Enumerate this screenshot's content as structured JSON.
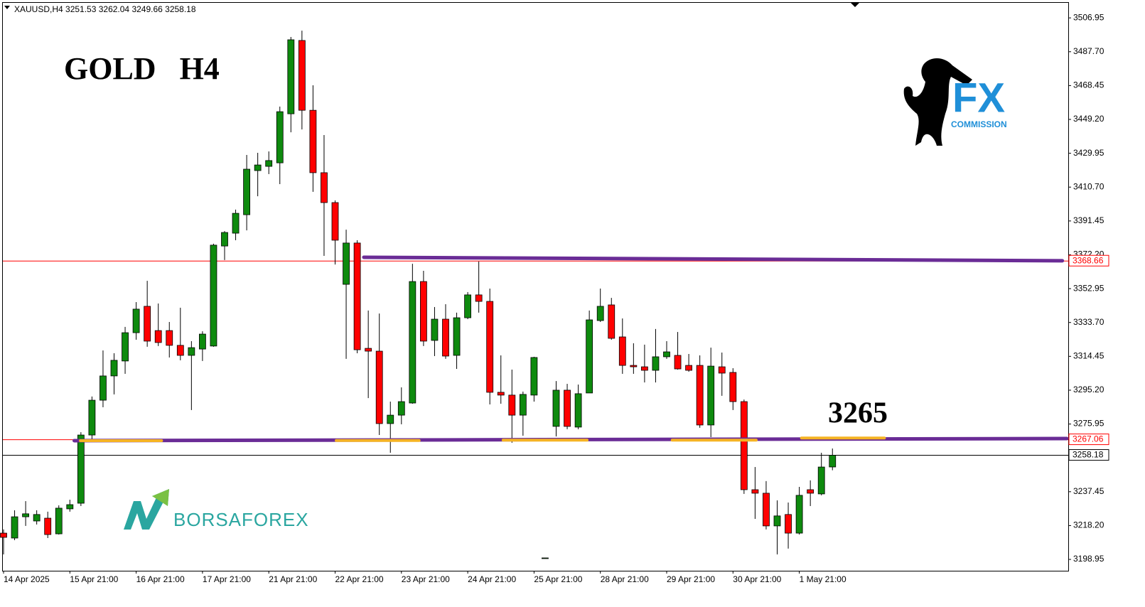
{
  "chart_data": {
    "type": "candlestick",
    "header": "XAUUSD,H4  3251.53 3262.04 3249.66 3258.18",
    "categories": [
      "14 Apr 2025",
      null,
      null,
      null,
      null,
      null,
      "15 Apr 21:00",
      null,
      null,
      null,
      null,
      null,
      "16 Apr 21:00",
      null,
      null,
      null,
      null,
      null,
      "17 Apr 21:00",
      null,
      null,
      null,
      null,
      null,
      "21 Apr 21:00",
      null,
      null,
      null,
      null,
      null,
      "22 Apr 21:00",
      null,
      null,
      null,
      null,
      null,
      "23 Apr 21:00",
      null,
      null,
      null,
      null,
      null,
      "24 Apr 21:00",
      null,
      null,
      null,
      null,
      null,
      "25 Apr 21:00",
      null,
      null,
      null,
      null,
      null,
      "28 Apr 21:00",
      null,
      null,
      null,
      null,
      null,
      "29 Apr 21:00",
      null,
      null,
      null,
      null,
      null,
      "30 Apr 21:00",
      null,
      null,
      null,
      null,
      null,
      "1 May 21:00",
      null,
      null,
      null
    ],
    "open": [
      3213.9,
      3211.1,
      3223.2,
      3220.8,
      3222.4,
      3213.5,
      3227.7,
      3230.9,
      3269.7,
      3289.5,
      3303.3,
      3311.8,
      3327.9,
      3342.9,
      3329.1,
      3329.1,
      3320.7,
      3315.0,
      3318.6,
      3320.3,
      3377.2,
      3384.5,
      3395.0,
      3420.1,
      3422.5,
      3424.5,
      3452.4,
      3494.1,
      3454.4,
      3418.9,
      3401.9,
      3355.4,
      3378.9,
      3319.0,
      3317.4,
      3276.2,
      3281.0,
      3287.9,
      3357.0,
      3323.5,
      3335.6,
      3315.0,
      3336.4,
      3349.4,
      3345.7,
      3294.0,
      3292.4,
      3281.0,
      3292.4,
      3199.8,
      3274.6,
      3295.2,
      3274.2,
      3293.6,
      3334.8,
      3343.7,
      3325.5,
      3309.3,
      3308.5,
      3306.5,
      3314.2,
      3315.0,
      3309.3,
      3309.3,
      3275.4,
      3308.5,
      3305.3,
      3288.7,
      3238.6,
      3236.6,
      3218.0,
      3224.5,
      3213.9,
      3238.6,
      3236.2,
      3251.53
    ],
    "high": [
      3216.0,
      3226.9,
      3232.1,
      3226.9,
      3226.1,
      3229.7,
      3232.9,
      3271.3,
      3291.6,
      3317.8,
      3316.2,
      3331.2,
      3345.3,
      3357.4,
      3344.5,
      3334.0,
      3342.1,
      3323.1,
      3328.7,
      3378.5,
      3385.7,
      3397.9,
      3429.0,
      3430.2,
      3431.0,
      3456.5,
      3496.1,
      3499.7,
      3468.6,
      3440.3,
      3403.1,
      3386.5,
      3380.5,
      3340.5,
      3338.8,
      3288.7,
      3296.8,
      3367.1,
      3363.1,
      3342.5,
      3344.1,
      3339.3,
      3351.0,
      3368.4,
      3353.0,
      3315.0,
      3306.9,
      3294.4,
      3314.2,
      3199.8,
      3300.4,
      3298.8,
      3298.4,
      3340.5,
      3353.0,
      3347.7,
      3336.0,
      3321.9,
      3321.1,
      3330.0,
      3323.1,
      3328.3,
      3315.8,
      3315.0,
      3319.4,
      3316.6,
      3307.7,
      3289.9,
      3251.5,
      3243.5,
      3232.5,
      3231.3,
      3240.2,
      3243.9,
      3259.6,
      3262.04
    ],
    "low": [
      3201.8,
      3209.9,
      3218.0,
      3218.8,
      3211.1,
      3213.1,
      3226.1,
      3229.3,
      3266.5,
      3285.5,
      3292.8,
      3304.5,
      3323.9,
      3319.9,
      3320.3,
      3313.8,
      3312.2,
      3283.9,
      3311.8,
      3319.9,
      3369.2,
      3380.5,
      3386.1,
      3405.5,
      3418.1,
      3412.4,
      3441.9,
      3443.5,
      3408.0,
      3371.6,
      3366.7,
      3313.0,
      3316.2,
      3290.7,
      3269.7,
      3259.6,
      3275.8,
      3287.5,
      3320.3,
      3314.6,
      3313.0,
      3307.3,
      3335.6,
      3339.3,
      3287.1,
      3287.5,
      3265.3,
      3269.3,
      3288.7,
      3199.8,
      3268.9,
      3273.0,
      3273.0,
      3293.6,
      3334.0,
      3323.9,
      3304.5,
      3304.5,
      3299.6,
      3299.6,
      3313.0,
      3306.9,
      3305.7,
      3273.8,
      3268.5,
      3292.0,
      3283.9,
      3236.2,
      3222.0,
      3216.0,
      3201.8,
      3205.1,
      3213.1,
      3229.3,
      3235.4,
      3249.66
    ],
    "close": [
      3211.5,
      3223.2,
      3224.9,
      3224.5,
      3213.1,
      3228.1,
      3230.1,
      3269.7,
      3289.5,
      3303.3,
      3312.2,
      3327.9,
      3341.3,
      3323.1,
      3322.3,
      3320.7,
      3315.0,
      3319.4,
      3327.1,
      3377.7,
      3384.9,
      3395.8,
      3420.9,
      3423.3,
      3425.8,
      3453.6,
      3494.5,
      3454.4,
      3418.9,
      3401.9,
      3380.5,
      3378.9,
      3318.2,
      3317.4,
      3276.2,
      3281.0,
      3288.7,
      3357.0,
      3323.1,
      3335.6,
      3314.6,
      3336.4,
      3349.4,
      3345.7,
      3294.0,
      3292.4,
      3281.0,
      3292.8,
      3313.8,
      3199.8,
      3295.2,
      3274.6,
      3293.2,
      3335.2,
      3342.9,
      3324.7,
      3309.3,
      3308.5,
      3306.5,
      3314.2,
      3317.0,
      3307.3,
      3306.5,
      3275.4,
      3308.9,
      3304.9,
      3288.7,
      3238.6,
      3236.6,
      3218.0,
      3223.7,
      3213.9,
      3235.4,
      3236.6,
      3251.5,
      3258.18
    ],
    "up_color": "#0e8a0e",
    "down_color": "#ff0000",
    "ylim": [
      3192.5,
      3515.1
    ],
    "yticks": [
      3506.95,
      {
        "value": 3487.7,
        "label": "3487.70"
      },
      3468.45,
      {
        "value": 3449.2,
        "label": "3449.20"
      },
      3429.95,
      {
        "value": 3410.7,
        "label": "3410.70"
      },
      3391.45,
      {
        "value": 3372.2,
        "label": "3372.20"
      },
      3352.95,
      {
        "value": 3333.7,
        "label": "3333.70"
      },
      3314.45,
      {
        "value": 3295.2,
        "label": "3295.20"
      },
      3275.95,
      {
        "value": 3256.7,
        "label": "3256.70"
      },
      3237.45,
      {
        "value": 3218.2,
        "label": "3218.20"
      },
      3198.95
    ],
    "price_lines": [
      {
        "value": 3368.66,
        "color": "#ff0000"
      },
      {
        "value": 3267.06,
        "color": "#ff0000"
      },
      {
        "value": 3258.18,
        "color": "#000000"
      }
    ],
    "trendlines": [
      {
        "x": [
          32.6,
          95.8
        ],
        "y": [
          3370.8,
          3368.8
        ],
        "color": "#6a2c96"
      },
      {
        "x": [
          6.4,
          96.2
        ],
        "y": [
          3266.5,
          3267.7
        ],
        "color": "#6a2c96"
      }
    ],
    "highlights": [
      {
        "x": [
          6.95,
          14.3
        ],
        "y": 3266.5
      },
      {
        "x": [
          30.1,
          37.6
        ],
        "y": 3266.6
      },
      {
        "x": [
          45.2,
          52.8
        ],
        "y": 3266.8
      },
      {
        "x": [
          60.5,
          68.1
        ],
        "y": 3266.8
      },
      {
        "x": [
          72.2,
          79.7
        ],
        "y": 3268.0
      }
    ],
    "highlight_color": "#f5b324",
    "annotations": [
      "GOLD   H4",
      "3265"
    ],
    "logos": [
      "FX",
      "COMMISSION",
      "BORSAFOREX"
    ]
  }
}
